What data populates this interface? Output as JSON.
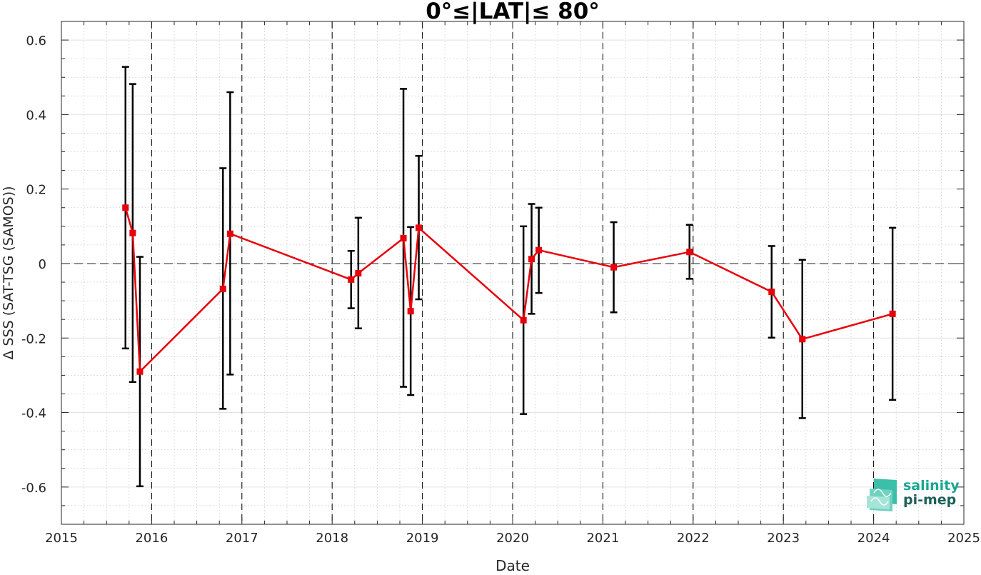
{
  "chart_data": {
    "type": "line",
    "title": "0°≤|LAT|≤ 80°",
    "xlabel": "Date",
    "ylabel": "Δ SSS (SAT-TSG (SAMOS))",
    "xlim": [
      2015,
      2025
    ],
    "ylim": [
      -0.7,
      0.65
    ],
    "x_ticks": [
      "2015",
      "2016",
      "2017",
      "2018",
      "2019",
      "2020",
      "2021",
      "2022",
      "2023",
      "2024",
      "2025"
    ],
    "y_ticks": [
      "-0.6",
      "-0.4",
      "-0.2",
      "0",
      "0.2",
      "0.4",
      "0.6"
    ],
    "grid": true,
    "zero_line": 0,
    "vertical_markers": [
      2016.0,
      2017.0,
      2018.0,
      2019.0,
      2020.0,
      2021.0,
      2022.0,
      2023.0,
      2024.0
    ],
    "series": [
      {
        "color": "#e8000b",
        "marker": "square",
        "errorbar_color": "#000000",
        "points": [
          {
            "x": 2015.71,
            "y": 0.15,
            "lo": -0.228,
            "hi": 0.528
          },
          {
            "x": 2015.79,
            "y": 0.082,
            "lo": -0.318,
            "hi": 0.482
          },
          {
            "x": 2015.87,
            "y": -0.29,
            "lo": -0.598,
            "hi": 0.018
          },
          {
            "x": 2016.79,
            "y": -0.068,
            "lo": -0.39,
            "hi": 0.256
          },
          {
            "x": 2016.87,
            "y": 0.08,
            "lo": -0.298,
            "hi": 0.46
          },
          {
            "x": 2018.21,
            "y": -0.043,
            "lo": -0.12,
            "hi": 0.034
          },
          {
            "x": 2018.29,
            "y": -0.026,
            "lo": -0.174,
            "hi": 0.123
          },
          {
            "x": 2018.79,
            "y": 0.068,
            "lo": -0.331,
            "hi": 0.469
          },
          {
            "x": 2018.87,
            "y": -0.128,
            "lo": -0.353,
            "hi": 0.098
          },
          {
            "x": 2018.96,
            "y": 0.096,
            "lo": -0.096,
            "hi": 0.289
          },
          {
            "x": 2020.12,
            "y": -0.152,
            "lo": -0.404,
            "hi": 0.1
          },
          {
            "x": 2020.21,
            "y": 0.012,
            "lo": -0.135,
            "hi": 0.16
          },
          {
            "x": 2020.29,
            "y": 0.036,
            "lo": -0.079,
            "hi": 0.15
          },
          {
            "x": 2021.12,
            "y": -0.01,
            "lo": -0.131,
            "hi": 0.111
          },
          {
            "x": 2021.96,
            "y": 0.031,
            "lo": -0.041,
            "hi": 0.104
          },
          {
            "x": 2022.87,
            "y": -0.076,
            "lo": -0.199,
            "hi": 0.047
          },
          {
            "x": 2023.21,
            "y": -0.203,
            "lo": -0.415,
            "hi": 0.01
          },
          {
            "x": 2024.21,
            "y": -0.135,
            "lo": -0.366,
            "hi": 0.096
          }
        ]
      }
    ],
    "logo": {
      "line1": "salinity",
      "line2": "pi-mep"
    }
  }
}
